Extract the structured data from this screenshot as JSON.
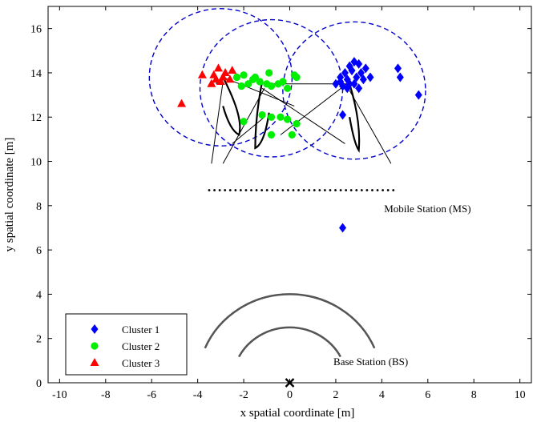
{
  "chart_data": {
    "type": "scatter",
    "title": "",
    "xlabel": "x spatial coordinate [m]",
    "ylabel": "y spatial coordinate [m]",
    "xlim": [
      -10.5,
      10.5
    ],
    "ylim": [
      0,
      17
    ],
    "xticks": [
      -10,
      -8,
      -6,
      -4,
      -2,
      0,
      2,
      4,
      6,
      8,
      10
    ],
    "yticks": [
      0,
      2,
      4,
      6,
      8,
      10,
      12,
      14,
      16
    ],
    "grid": false,
    "legend_position": "bottom-left",
    "series": [
      {
        "name": "Cluster 1",
        "marker": "diamond",
        "color": "#0000ff",
        "points": [
          [
            2.8,
            14.5
          ],
          [
            2.6,
            14.3
          ],
          [
            3.0,
            14.4
          ],
          [
            2.4,
            14.0
          ],
          [
            2.7,
            14.1
          ],
          [
            3.1,
            14.0
          ],
          [
            2.9,
            13.8
          ],
          [
            2.5,
            13.7
          ],
          [
            2.2,
            13.6
          ],
          [
            2.3,
            13.4
          ],
          [
            2.6,
            13.5
          ],
          [
            3.2,
            13.7
          ],
          [
            3.5,
            13.8
          ],
          [
            3.3,
            14.2
          ],
          [
            2.0,
            13.5
          ],
          [
            2.2,
            13.8
          ],
          [
            2.8,
            13.5
          ],
          [
            3.0,
            13.3
          ],
          [
            2.5,
            13.3
          ],
          [
            4.7,
            14.2
          ],
          [
            4.8,
            13.8
          ],
          [
            5.6,
            13.0
          ],
          [
            2.3,
            12.1
          ],
          [
            2.3,
            7.0
          ]
        ]
      },
      {
        "name": "Cluster 2",
        "marker": "circle",
        "color": "#00ee00",
        "points": [
          [
            -2.3,
            13.8
          ],
          [
            -2.0,
            13.9
          ],
          [
            -1.8,
            13.5
          ],
          [
            -1.5,
            13.8
          ],
          [
            -1.3,
            13.6
          ],
          [
            -1.0,
            13.5
          ],
          [
            -0.8,
            13.4
          ],
          [
            -0.5,
            13.5
          ],
          [
            -0.3,
            13.6
          ],
          [
            -0.1,
            13.3
          ],
          [
            0.2,
            13.9
          ],
          [
            0.3,
            13.8
          ],
          [
            -2.1,
            13.4
          ],
          [
            -1.6,
            13.7
          ],
          [
            -0.9,
            14.0
          ],
          [
            -1.2,
            12.1
          ],
          [
            -0.8,
            12.0
          ],
          [
            -0.4,
            12.0
          ],
          [
            -0.1,
            11.9
          ],
          [
            0.3,
            11.7
          ],
          [
            -2.0,
            11.8
          ],
          [
            -0.8,
            11.2
          ],
          [
            0.1,
            11.2
          ]
        ]
      },
      {
        "name": "Cluster 3",
        "marker": "triangle",
        "color": "#ff0000",
        "points": [
          [
            -3.1,
            14.2
          ],
          [
            -2.8,
            14.0
          ],
          [
            -2.5,
            14.1
          ],
          [
            -3.2,
            13.7
          ],
          [
            -2.9,
            13.8
          ],
          [
            -3.0,
            13.6
          ],
          [
            -2.6,
            13.7
          ],
          [
            -3.4,
            13.5
          ],
          [
            -3.8,
            13.9
          ],
          [
            -4.7,
            12.6
          ],
          [
            -3.3,
            13.9
          ]
        ]
      }
    ],
    "annotations": [
      {
        "text": "Mobile Station (MS)",
        "x": 4.1,
        "y": 7.7
      },
      {
        "text": "Base Station (BS)",
        "x": 1.9,
        "y": 0.8
      }
    ],
    "circles": [
      {
        "cx": -3.0,
        "cy": 13.8,
        "r": 3.1
      },
      {
        "cx": -0.8,
        "cy": 13.3,
        "r": 3.1
      },
      {
        "cx": 2.8,
        "cy": 13.2,
        "r": 3.1
      }
    ],
    "ms_array": {
      "x_start": -3.5,
      "x_end": 4.5,
      "y": 8.7,
      "count": 36
    },
    "base_station": {
      "x": 0,
      "y": 0
    },
    "arcs": [
      {
        "r": 4.0,
        "angle_from": 23,
        "angle_to": 157
      },
      {
        "r": 2.5,
        "angle_from": 28,
        "angle_to": 152
      }
    ]
  }
}
